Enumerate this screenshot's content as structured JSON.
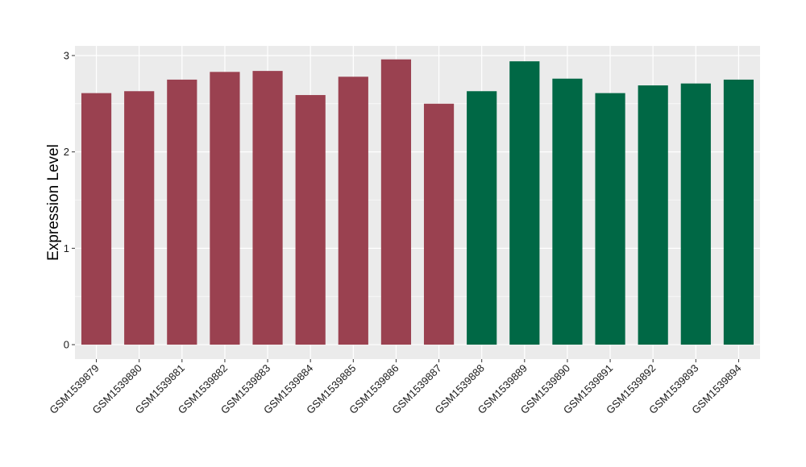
{
  "chart_data": {
    "type": "bar",
    "title": "",
    "xlabel": "",
    "ylabel": "Expression Level",
    "ylim": [
      -0.15,
      3.1
    ],
    "yticks": [
      0,
      1,
      2,
      3
    ],
    "grid": true,
    "legend": "none",
    "colors": {
      "panel": "#ebebeb",
      "grid": "#ffffff",
      "group1": "#9a4150",
      "group2": "#006845"
    },
    "categories": [
      "GSM1539879",
      "GSM1539880",
      "GSM1539881",
      "GSM1539882",
      "GSM1539883",
      "GSM1539884",
      "GSM1539885",
      "GSM1539886",
      "GSM1539887",
      "GSM1539888",
      "GSM1539889",
      "GSM1539890",
      "GSM1539891",
      "GSM1539892",
      "GSM1539893",
      "GSM1539894"
    ],
    "values": [
      2.61,
      2.63,
      2.75,
      2.83,
      2.84,
      2.59,
      2.78,
      2.96,
      2.5,
      2.63,
      2.94,
      2.76,
      2.61,
      2.69,
      2.71,
      2.75
    ],
    "groups": [
      "group1",
      "group1",
      "group1",
      "group1",
      "group1",
      "group1",
      "group1",
      "group1",
      "group1",
      "group2",
      "group2",
      "group2",
      "group2",
      "group2",
      "group2",
      "group2"
    ]
  }
}
